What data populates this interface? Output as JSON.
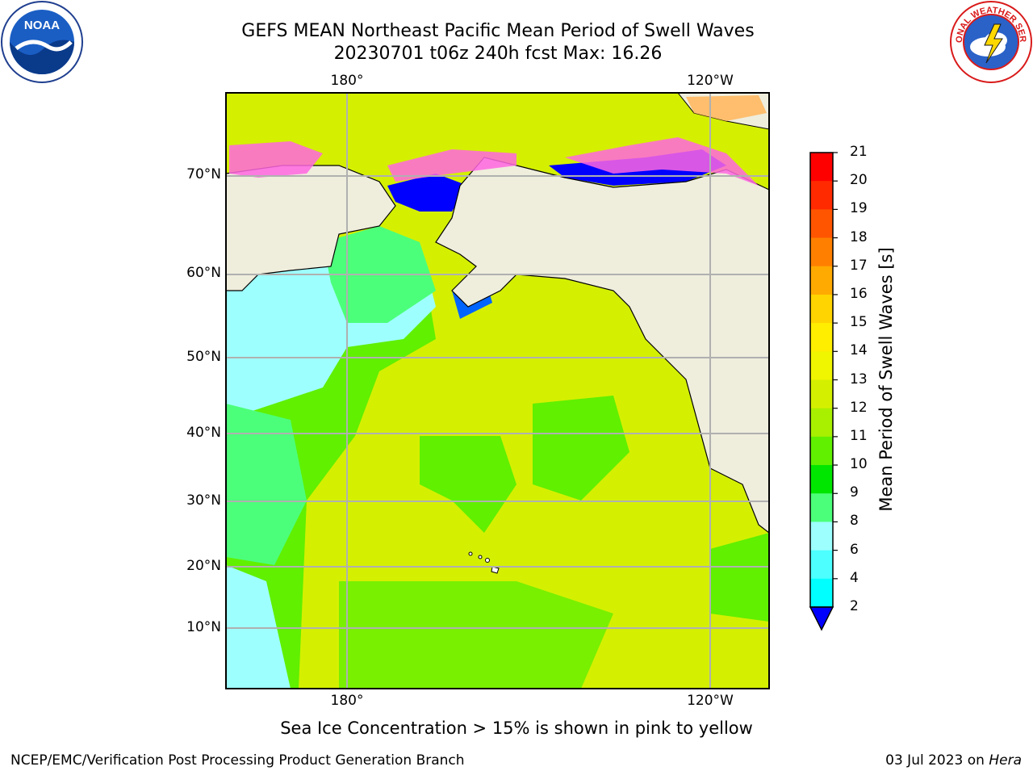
{
  "header": {
    "title_line1": "GEFS MEAN Northeast Pacific Mean Period of Swell Waves",
    "title_line2": "20230701 t06z 240h fcst   Max: 16.26"
  },
  "logos": {
    "left": {
      "icon": "noaa-logo",
      "text": "NOAA"
    },
    "right": {
      "icon": "nws-logo",
      "text": "NATIONAL WEATHER SERVICE"
    }
  },
  "map": {
    "lon_labels_top": [
      "180°",
      "120°W"
    ],
    "lon_labels_bottom": [
      "180°",
      "120°W"
    ],
    "lat_labels": [
      "70°N",
      "60°N",
      "50°N",
      "40°N",
      "30°N",
      "20°N",
      "10°N"
    ],
    "land_color": "#efeddc",
    "grid_color": "#b0b0b0"
  },
  "colorbar": {
    "title": "Mean Period of Swell Waves [s]",
    "ticks": [
      "21",
      "20",
      "19",
      "18",
      "17",
      "16",
      "15",
      "14",
      "13",
      "12",
      "11",
      "10",
      "9",
      "8",
      "6",
      "4",
      "2"
    ],
    "colors": [
      "#ff0000",
      "#ff2a00",
      "#ff5500",
      "#ff8000",
      "#ffaa00",
      "#ffd400",
      "#ffee00",
      "#f0f500",
      "#d4f000",
      "#a8f000",
      "#60f000",
      "#00e600",
      "#4cff7a",
      "#9effff",
      "#4dffff",
      "#00ffff",
      "#00a0ff",
      "#0064ff"
    ],
    "extend_color": "#0000ff"
  },
  "footer": {
    "sea_ice_note": "Sea Ice Concentration > 15% is shown in pink to yellow",
    "credit": "NCEP/EMC/Verification Post Processing Product Generation Branch",
    "date": "03 Jul 2023 on ",
    "machine": "Hera"
  }
}
